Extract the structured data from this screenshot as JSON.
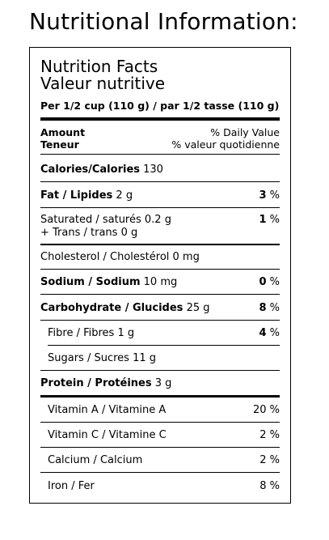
{
  "title": "Nutritional Information:",
  "label": {
    "heading_en": "Nutrition Facts",
    "heading_fr": "Valeur nutritive",
    "serving": "Per 1/2 cup (110 g) / par 1/2 tasse (110 g)",
    "amount_en": "Amount",
    "amount_fr": "Teneur",
    "dv_en": "% Daily Value",
    "dv_fr": "% valeur quotidienne",
    "calories": {
      "name": "Calories/Calories",
      "value": "130"
    },
    "fat": {
      "name": "Fat / Lipides",
      "value": "2 g",
      "dv": "3",
      "unit": "%"
    },
    "saturated": {
      "name": "Saturated / saturés",
      "value": "0.2 g",
      "dv": "1",
      "unit": "%"
    },
    "trans": {
      "name": "+ Trans / trans",
      "value": "0 g"
    },
    "cholesterol": {
      "name": "Cholesterol / Cholestérol",
      "value": "0 mg"
    },
    "sodium": {
      "name": "Sodium / Sodium",
      "value": "10 mg",
      "dv": "0",
      "unit": "%"
    },
    "carbohydrate": {
      "name": "Carbohydrate / Glucides",
      "value": "25 g",
      "dv": "8",
      "unit": "%"
    },
    "fibre": {
      "name": "Fibre / Fibres",
      "value": "1 g",
      "dv": "4",
      "unit": "%"
    },
    "sugars": {
      "name": "Sugars / Sucres",
      "value": "11 g"
    },
    "protein": {
      "name": "Protein / Protéines",
      "value": "3 g"
    },
    "vitamin_a": {
      "name": "Vitamin A / Vitamine A",
      "dv": "20 %"
    },
    "vitamin_c": {
      "name": "Vitamin C / Vitamine C",
      "dv": "2 %"
    },
    "calcium": {
      "name": "Calcium / Calcium",
      "dv": "2 %"
    },
    "iron": {
      "name": "Iron / Fer",
      "dv": "8 %"
    }
  }
}
